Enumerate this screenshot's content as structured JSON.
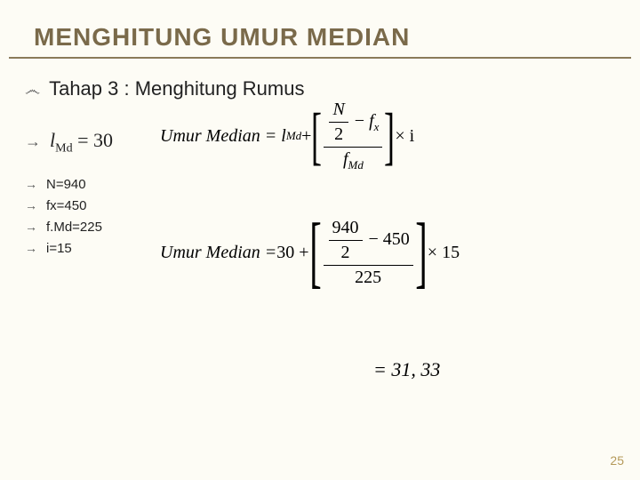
{
  "title": "MENGHITUNG UMUR MEDIAN",
  "bullets": {
    "tahap": "Tahap  3 : Menghitung Rumus",
    "lmd_label_l": "l",
    "lmd_label_sub": "Md",
    "lmd_label_eq": " = 30"
  },
  "small_items": [
    "N=940",
    "fx=450",
    "f.Md=225",
    "i=15"
  ],
  "formula1": {
    "lhs": "Umur Median = l",
    "lhs_sub": "Md",
    "plus": " + ",
    "num_frac_top": "N",
    "num_frac_bot": "2",
    "minus_fx_minus": " − ",
    "fx_f": "f",
    "fx_x": "x",
    "den_f": "f",
    "den_sub": "Md",
    "times_i": " × i"
  },
  "formula2": {
    "lhs": "Umur Median = ",
    "thirty": "30 + ",
    "num_frac_top": "940",
    "num_frac_bot": "2",
    "minus": " − 450",
    "den": "225",
    "times": " × 15"
  },
  "formula3": "= 31, 33",
  "pagenum": "25",
  "icons": {
    "curly": "෴",
    "arrow": "→"
  }
}
